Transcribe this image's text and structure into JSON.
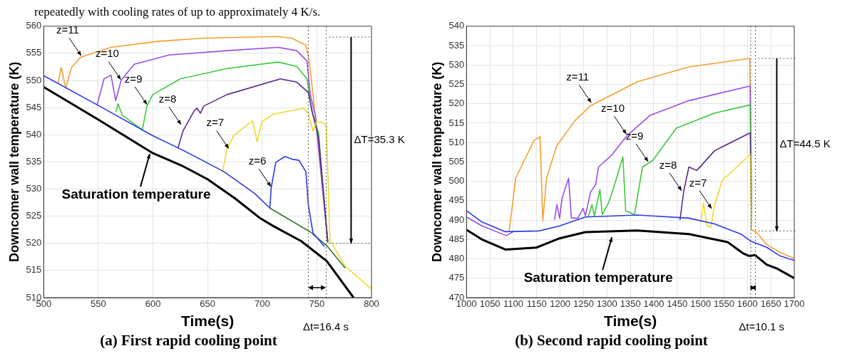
{
  "chart_data": [
    {
      "type": "line",
      "title": "(a) First rapid cooling point",
      "subtitle": "repeatedly with cooling rates of up to approximately 4 K/s.",
      "xlabel": "Time(s)",
      "ylabel": "Downcomer wall temperature (K)",
      "xlim": [
        500,
        800
      ],
      "ylim": [
        510,
        560
      ],
      "xticks": [
        500,
        550,
        600,
        650,
        700,
        750,
        800
      ],
      "yticks": [
        510,
        515,
        520,
        525,
        530,
        535,
        540,
        545,
        550,
        555,
        560
      ],
      "grid": true,
      "legend": false,
      "series": [
        {
          "color": "#2a3ae8",
          "x": [
            500,
            550,
            600,
            625,
            665,
            693,
            707,
            708.2,
            712.4,
            720.9,
            727.3,
            733.6,
            740,
            742.2,
            746.5,
            757
          ],
          "values": [
            550.9,
            545.4,
            539.8,
            537.4,
            533.2,
            529.2,
            526.5,
            530.2,
            534.9,
            536,
            535.5,
            535.3,
            533.2,
            527.1,
            521.9,
            519.4
          ]
        },
        {
          "color": "#2e7d32",
          "x": [
            707,
            744,
            759,
            776
          ],
          "values": [
            526.5,
            522.1,
            519.6,
            515.4
          ]
        },
        {
          "color": "#f0d830",
          "x": [
            663.6,
            667.8,
            674.2,
            691.2,
            695.4,
            699.7,
            710.3,
            737.9,
            742.2,
            746.5,
            749.7,
            756,
            758.8,
            762,
            776,
            800
          ],
          "values": [
            533,
            537.4,
            539.9,
            542.6,
            538.7,
            542.4,
            543.8,
            544.9,
            544,
            540.7,
            542.4,
            542.2,
            541.5,
            520.5,
            515.8,
            511.6
          ]
        },
        {
          "color": "#5a2a8a",
          "x": [
            623,
            627.5,
            638,
            640.2,
            643.4,
            646.6,
            667.8,
            716.7,
            731.6,
            742.2,
            746.5,
            751.6,
            760
          ],
          "values": [
            537.6,
            540.7,
            544.5,
            544.9,
            544,
            545.3,
            547.4,
            550.3,
            549.7,
            547.8,
            543.6,
            539.5,
            520.2
          ]
        },
        {
          "color": "#3cc83c",
          "x": [
            566,
            568,
            572,
            590.3,
            594.5,
            599.8,
            625,
            667.8,
            714.6,
            731.6,
            741,
            745.2,
            751.6,
            760
          ],
          "values": [
            544.2,
            545.7,
            543.6,
            540.9,
            545.3,
            547.4,
            550.3,
            552.2,
            553.4,
            552.6,
            550.3,
            544.5,
            540.3,
            520.1
          ]
        },
        {
          "color": "#9a4de8",
          "x": [
            548.9,
            555.2,
            561.6,
            565.9,
            571,
            582.9,
            614.7,
            667.8,
            714.6,
            731.6,
            741,
            744,
            748.6,
            760
          ],
          "values": [
            545.5,
            550.3,
            551,
            546.3,
            550.1,
            553,
            554.7,
            555.5,
            556.1,
            555.5,
            553.6,
            547.4,
            543.6,
            520.3
          ]
        },
        {
          "color": "#f5a030",
          "x": [
            513,
            516,
            520.2,
            525.5,
            534,
            561.6,
            604,
            646.6,
            714.6,
            727,
            740,
            743,
            746.5,
            760
          ],
          "values": [
            549.4,
            552.4,
            548.6,
            552.4,
            554.3,
            556.1,
            557.2,
            557.8,
            558.1,
            557.8,
            556.5,
            553.6,
            547.4,
            520.5
          ]
        },
        {
          "color": "#000000",
          "x": [
            500,
            550,
            600,
            627.5,
            650,
            675,
            697.6,
            710,
            735.8,
            759.2,
            783.6
          ],
          "values": [
            548.8,
            542.8,
            536.6,
            534.2,
            531.8,
            528.3,
            524.7,
            523.2,
            520.4,
            516.7,
            510
          ]
        }
      ],
      "ref_lines": [
        {
          "axis": "x",
          "value": 742.2,
          "line_style": "dotted"
        },
        {
          "axis": "x",
          "value": 758.6,
          "line_style": "dotted"
        },
        {
          "axis": "y",
          "value": 558,
          "line_style": "dotted"
        },
        {
          "axis": "y",
          "value": 520,
          "line_style": "dotted"
        }
      ],
      "annotations": [
        {
          "text": "z=11",
          "x": 535,
          "y": 554.3
        },
        {
          "text": "z=10",
          "x": 571.2,
          "y": 549.9
        },
        {
          "text": "z=9",
          "x": 595.2,
          "y": 545.3
        },
        {
          "text": "z=8",
          "x": 626.4,
          "y": 541.6
        },
        {
          "text": "z=7",
          "x": 670,
          "y": 537.2
        },
        {
          "text": "z=6",
          "x": 708.6,
          "y": 530.2
        },
        {
          "text": "Saturation temperature",
          "x": 597.7,
          "y": 537
        },
        "ΔT=35.3 K",
        "Δt=16.4 s"
      ]
    },
    {
      "type": "line",
      "title": "(b) Second rapid cooling point",
      "xlabel": "Time(s)",
      "ylabel": "Downcomer wall temperature (K)",
      "xlim": [
        1000,
        1700
      ],
      "ylim": [
        470,
        540
      ],
      "xticks": [
        1000,
        1050,
        1100,
        1150,
        1200,
        1250,
        1300,
        1350,
        1400,
        1450,
        1500,
        1550,
        1600,
        1650,
        1700
      ],
      "yticks": [
        470,
        475,
        480,
        485,
        490,
        495,
        500,
        505,
        510,
        515,
        520,
        525,
        530,
        535,
        540
      ],
      "grid": true,
      "legend": false,
      "series": [
        {
          "color": "#2a3ae8",
          "x": [
            1000,
            1033,
            1083,
            1155,
            1199,
            1254,
            1365,
            1475,
            1530,
            1586,
            1608,
            1641,
            1669,
            1700
          ],
          "values": [
            492.4,
            489.5,
            487,
            487.2,
            488.5,
            490.8,
            491.3,
            490.5,
            489,
            486.4,
            484.5,
            483,
            480.8,
            479.6
          ]
        },
        {
          "color": "#f0d830",
          "x": [
            1500,
            1506,
            1514,
            1522,
            1530,
            1547,
            1558,
            1586,
            1606,
            1609
          ],
          "values": [
            489.2,
            494.3,
            488.5,
            488.2,
            494,
            500.5,
            501.5,
            504.7,
            507,
            487.5
          ]
        },
        {
          "color": "#5a2a8a",
          "x": [
            1456,
            1464,
            1475,
            1492,
            1530,
            1606,
            1609
          ],
          "values": [
            490,
            497.5,
            503.7,
            502.8,
            507.9,
            512.5,
            487.5
          ]
        },
        {
          "color": "#3cc83c",
          "x": [
            1260,
            1268,
            1273,
            1285,
            1290,
            1304,
            1318,
            1334,
            1340,
            1359,
            1365,
            1376,
            1398,
            1448,
            1530,
            1606,
            1609
          ],
          "values": [
            490.8,
            494,
            491.1,
            497.9,
            491.4,
            494.6,
            499.8,
            506.3,
            492.4,
            491.4,
            495.9,
            503.7,
            505.4,
            513.7,
            517.6,
            519.7,
            487.5
          ]
        },
        {
          "color": "#9a4de8",
          "x": [
            1000,
            1033,
            1085,
            1100,
            1155,
            1188,
            1193,
            1199,
            1204,
            1218,
            1224,
            1238,
            1249,
            1254,
            1265,
            1276,
            1282,
            1309,
            1343,
            1392,
            1475,
            1606,
            1609
          ],
          "values": [
            490.8,
            488.5,
            486,
            487,
            null,
            490.1,
            494,
            490.5,
            495.6,
            500.8,
            490.5,
            490.5,
            493,
            491.1,
            497.2,
            499.2,
            503.7,
            506.6,
            511.8,
            517,
            520.8,
            524.6,
            487.5
          ]
        },
        {
          "color": "#f5a030",
          "x": [
            1091,
            1105,
            1144,
            1157,
            1163,
            1171,
            1193,
            1232,
            1265,
            1365,
            1475,
            1605,
            1609,
            1619,
            1641,
            1669,
            1700
          ],
          "values": [
            487,
            500.8,
            510.5,
            511.5,
            489.8,
            500.8,
            509.2,
            515.7,
            519.5,
            525.7,
            529.5,
            531.7,
            487.5,
            486.9,
            483.7,
            481.7,
            480.1
          ]
        },
        {
          "color": "#000000",
          "x": [
            1000,
            1033,
            1083,
            1149,
            1199,
            1254,
            1365,
            1475,
            1558,
            1591,
            1602,
            1608,
            1616,
            1641,
            1663,
            1700
          ],
          "values": [
            487.5,
            485,
            482.4,
            482.9,
            485.3,
            486.9,
            487.3,
            486.4,
            484.3,
            481.4,
            480.8,
            480.8,
            481,
            478.5,
            477.5,
            475
          ]
        }
      ],
      "ref_lines": [
        {
          "axis": "x",
          "value": 1607,
          "line_style": "dotted"
        },
        {
          "axis": "x",
          "value": 1617,
          "line_style": "dotted"
        },
        {
          "axis": "y",
          "value": 531.7,
          "line_style": "dotted"
        },
        {
          "axis": "y",
          "value": 487.2,
          "line_style": "dotted"
        }
      ],
      "annotations": [
        {
          "text": "z=11",
          "x": 1268,
          "y": 519.9
        },
        {
          "text": "z=10",
          "x": 1343,
          "y": 511.8
        },
        {
          "text": "z=9",
          "x": 1389.5,
          "y": 504.7
        },
        {
          "text": "z=8",
          "x": 1461,
          "y": 497.2
        },
        {
          "text": "z=7",
          "x": 1525,
          "y": 492.6
        },
        {
          "text": "Saturation temperature",
          "x": 1312,
          "y": 486.3
        },
        "ΔT=44.5 K",
        "Δt=10.1 s"
      ]
    }
  ]
}
